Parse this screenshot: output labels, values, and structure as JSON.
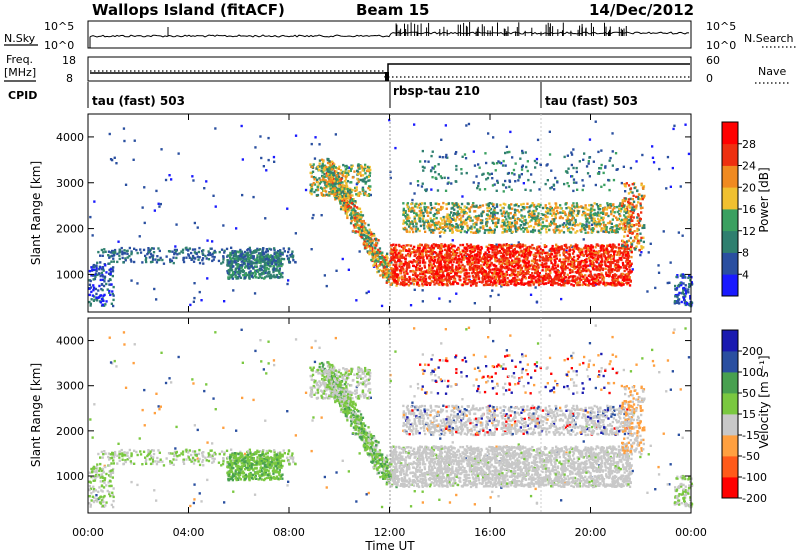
{
  "header": {
    "station": "Wallops Island (fitACF)",
    "beam": "Beam 15",
    "date": "14/Dec/2012"
  },
  "top_panels": {
    "nsky_label": "N.Sky",
    "nsky_ticks": [
      "10^5",
      "10^0"
    ],
    "nsearch_label": "N.Search",
    "nsearch_ticks": [
      "10^5",
      "10^0"
    ],
    "freq_label": "Freq.",
    "freq_unit": "[MHz]",
    "freq_ticks": [
      "18",
      "8"
    ],
    "nave_label": "Nave",
    "nave_ticks": [
      "60",
      "0"
    ],
    "cpid_label": "CPID",
    "cpid_segments": [
      {
        "label": "tau (fast) 503",
        "start_h": 0
      },
      {
        "label": "rbsp-tau 210",
        "start_h": 12
      },
      {
        "label": "tau (fast) 503",
        "start_h": 18
      }
    ]
  },
  "colors": {
    "power": [
      "#1a1aff",
      "#2a4fa0",
      "#2f7f6f",
      "#3aa060",
      "#f0c030",
      "#f08a20",
      "#ee3010",
      "#ff0000"
    ],
    "velocity": [
      "#ff0000",
      "#ff5a1a",
      "#ffa040",
      "#c8c8c8",
      "#7ac840",
      "#48a050",
      "#2a4fa0",
      "#1a1ab0"
    ],
    "ground_scatter": "#c8c8c8"
  },
  "chart_data": [
    {
      "type": "heatmap",
      "name": "power",
      "ylabel": "Slant Range [km]",
      "xlim": [
        0,
        24
      ],
      "ylim": [
        180,
        4500
      ],
      "yticks": [
        "1000",
        "2000",
        "3000",
        "4000"
      ],
      "colorbar_label": "Power [dB]",
      "colorbar_ticks": [
        "4",
        "8",
        "12",
        "16",
        "20",
        "24",
        "28"
      ],
      "colorbar_range": [
        0,
        32
      ]
    },
    {
      "type": "heatmap",
      "name": "velocity",
      "ylabel": "Slant Range [km]",
      "xlabel": "Time UT",
      "xlim": [
        0,
        24
      ],
      "ylim": [
        180,
        4500
      ],
      "xticks": [
        "00:00",
        "04:00",
        "08:00",
        "12:00",
        "16:00",
        "20:00",
        "00:00"
      ],
      "yticks": [
        "1000",
        "2000",
        "3000",
        "4000"
      ],
      "colorbar_label": "Velocity [m s⁻¹]",
      "colorbar_ticks": [
        "200",
        "100",
        "50",
        "15",
        "-15",
        "-50",
        "-100",
        "-200"
      ]
    }
  ]
}
